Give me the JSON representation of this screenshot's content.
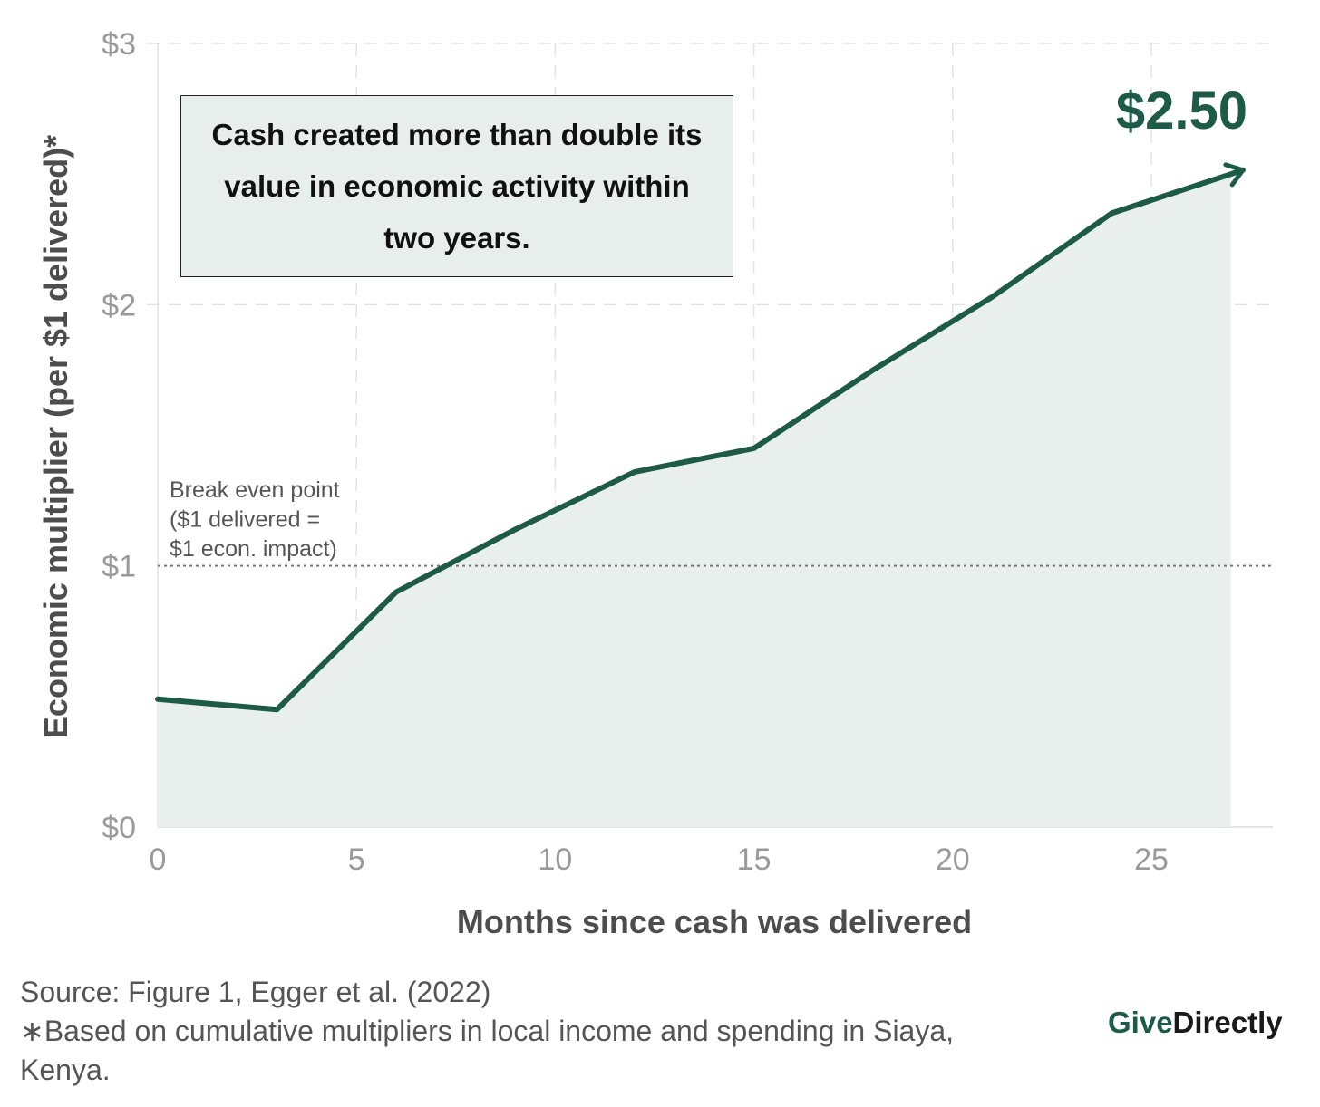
{
  "chart_data": {
    "type": "area",
    "title": "",
    "xlabel": "Months since cash was delivered",
    "ylabel": "Economic multiplier (per $1 delivered)*",
    "xlim": [
      0,
      28
    ],
    "ylim": [
      0,
      3
    ],
    "x_ticks": [
      0,
      5,
      10,
      15,
      20,
      25
    ],
    "x_tick_labels": [
      "0",
      "5",
      "10",
      "15",
      "20",
      "25"
    ],
    "y_ticks": [
      0,
      1,
      2,
      3
    ],
    "y_tick_labels": [
      "$0",
      "$1",
      "$2",
      "$3"
    ],
    "grid": true,
    "series": [
      {
        "x": [
          0,
          3,
          6,
          9,
          12,
          15,
          18,
          21,
          24,
          27
        ],
        "y": [
          0.49,
          0.45,
          0.9,
          1.14,
          1.36,
          1.45,
          1.75,
          2.03,
          2.35,
          2.5
        ]
      }
    ],
    "reference_line": {
      "y": 1,
      "style": "dotted",
      "label_lines": [
        "Break even point",
        "($1 delivered =",
        "$1 econ. impact)"
      ]
    },
    "end_label": "$2.50",
    "annotation": "Cash created more than double its value in economic activity within two years.",
    "colors": {
      "line": "#1e5b47",
      "fill": "#e9efed",
      "grid": "#e3e3e3"
    }
  },
  "footer": {
    "source": "Source: Figure 1, Egger et al. (2022)",
    "note_line1": "∗Based on cumulative multipliers in local income and spending in Siaya,",
    "note_line2": "Kenya."
  },
  "brand": {
    "part1": "Give",
    "part2": "Directly",
    "color1": "#1e5b47",
    "color2": "#1a1a1a"
  }
}
